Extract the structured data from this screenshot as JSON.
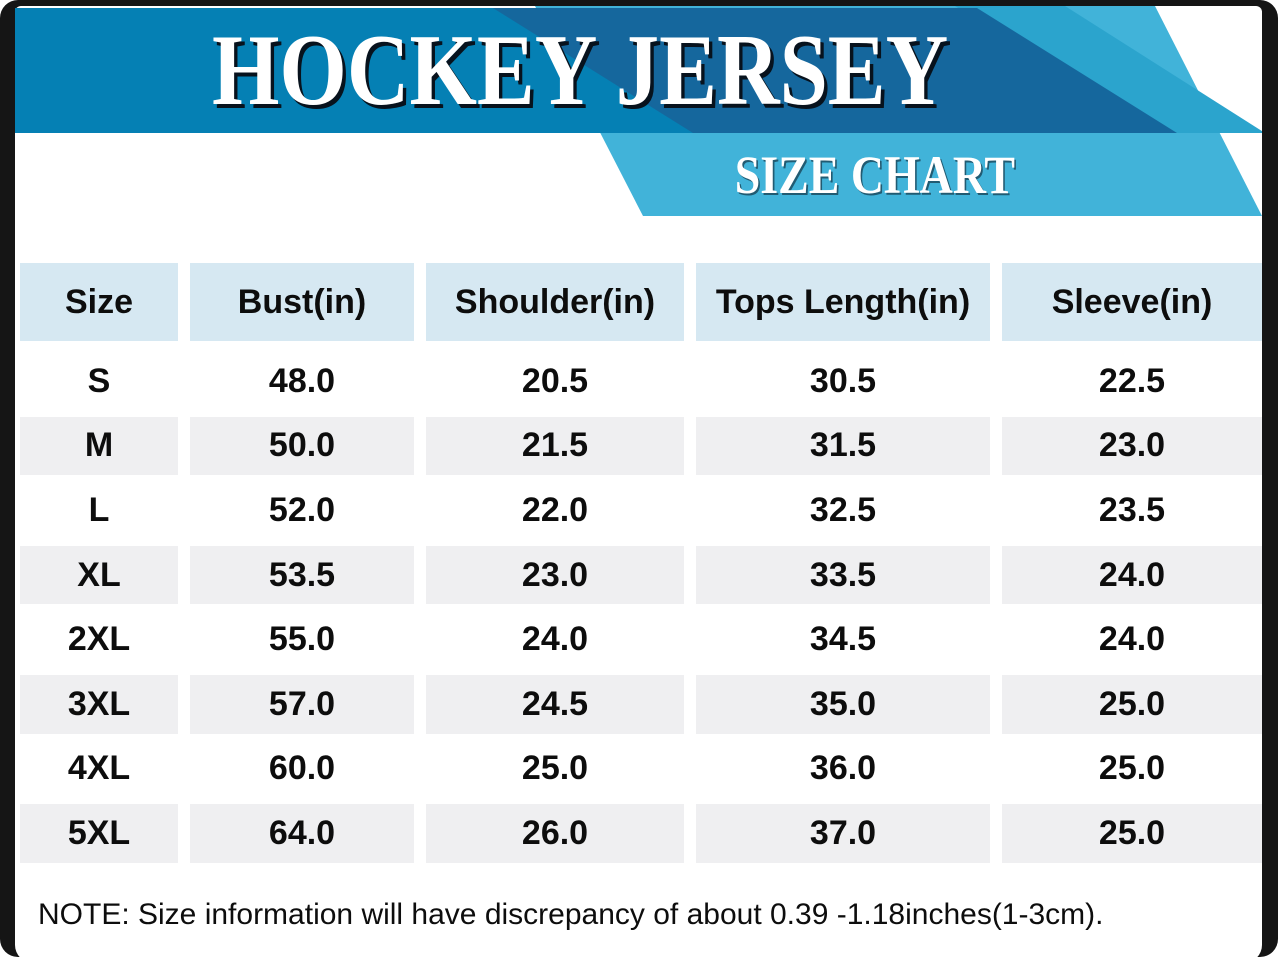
{
  "title": "HOCKEY JERSEY",
  "subtitle": "SIZE CHART",
  "note": "NOTE: Size information will have discrepancy of about 0.39 -1.18inches(1-3cm).",
  "chart_data": {
    "type": "table",
    "title": "HOCKEY JERSEY SIZE CHART",
    "columns": [
      "Size",
      "Bust(in)",
      "Shoulder(in)",
      "Tops Length(in)",
      "Sleeve(in)"
    ],
    "rows": [
      [
        "S",
        "48.0",
        "20.5",
        "30.5",
        "22.5"
      ],
      [
        "M",
        "50.0",
        "21.5",
        "31.5",
        "23.0"
      ],
      [
        "L",
        "52.0",
        "22.0",
        "32.5",
        "23.5"
      ],
      [
        "XL",
        "53.5",
        "23.0",
        "33.5",
        "24.0"
      ],
      [
        "2XL",
        "55.0",
        "24.0",
        "34.5",
        "24.0"
      ],
      [
        "3XL",
        "57.0",
        "24.5",
        "35.0",
        "25.0"
      ],
      [
        "4XL",
        "60.0",
        "25.0",
        "36.0",
        "25.0"
      ],
      [
        "5XL",
        "64.0",
        "26.0",
        "37.0",
        "25.0"
      ]
    ],
    "layout": {
      "row_striping": [
        "white",
        "gray"
      ],
      "column_alignment": "center"
    }
  },
  "colors": {
    "frame_black": "#151515",
    "banner_blue": "#0580b4",
    "band_navy": "#15679d",
    "band_deep_cyan": "#2ba4cd",
    "band_cyan": "#41b3d9",
    "header_cell_blue": "#d6e8f2",
    "stripe_gray": "#efeff1",
    "text": "#0d0d0d",
    "title_text": "#ffffff"
  }
}
